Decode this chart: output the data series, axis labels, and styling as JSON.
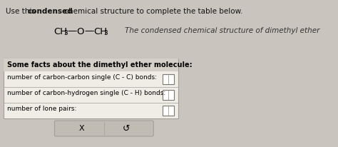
{
  "bg_color": "#c9c5be",
  "table_bg": "#e8e4de",
  "header_bg": "#d4d0c8",
  "box_bg": "#ffffff",
  "button_bg": "#c0bcb4",
  "border_color": "#a0a098",
  "text_color": "#111111",
  "title_plain1": "Use this ",
  "title_bold": "condensed",
  "title_plain2": " chemical structure to complete the table below.",
  "formula_ch3_left": "CH",
  "formula_sub": "3",
  "formula_o": "O",
  "formula_dash": "—",
  "caption": "The condensed chemical structure of dimethyl ether",
  "table_header": "Some facts about the dimethyl ether molecule:",
  "row1": "number of carbon-carbon single (C - C) bonds:",
  "row2": "number of carbon-hydrogen single (C - H) bonds:",
  "row3": "number of lone pairs:",
  "btn_x": "X",
  "btn_undo": "↺",
  "fig_w": 4.74,
  "fig_h": 2.06,
  "dpi": 100
}
